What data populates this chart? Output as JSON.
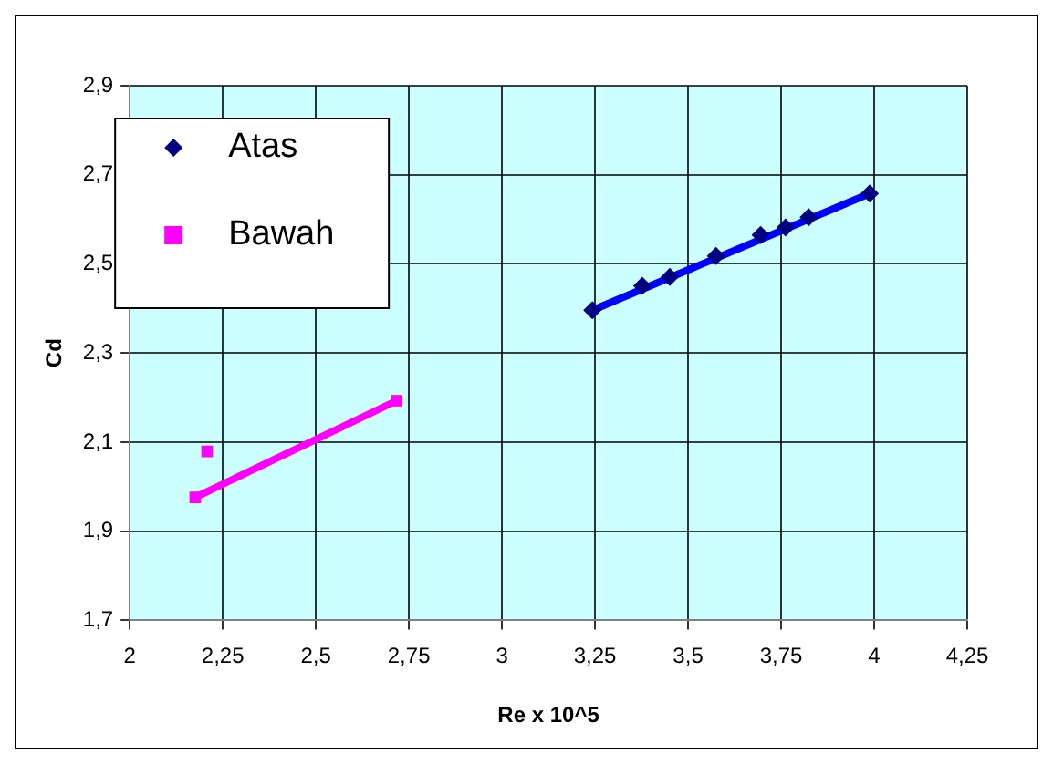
{
  "chart_data": {
    "type": "scatter",
    "xlabel": "Re x 10^5",
    "ylabel": "Cd",
    "xlim": [
      2,
      4.25
    ],
    "xticks": [
      {
        "value": 2,
        "label": "2"
      },
      {
        "value": 2.25,
        "label": "2,25"
      },
      {
        "value": 2.5,
        "label": "2,5"
      },
      {
        "value": 2.75,
        "label": "2,75"
      },
      {
        "value": 3,
        "label": "3"
      },
      {
        "value": 3.25,
        "label": "3,25"
      },
      {
        "value": 3.5,
        "label": "3,5"
      },
      {
        "value": 3.75,
        "label": "3,75"
      },
      {
        "value": 4,
        "label": "4"
      },
      {
        "value": 4.25,
        "label": "4,25"
      }
    ],
    "ylim": [
      1.7,
      2.9
    ],
    "yticks": [
      {
        "value": 1.7,
        "label": "1,7"
      },
      {
        "value": 1.9,
        "label": "1,9"
      },
      {
        "value": 2.1,
        "label": "2,1"
      },
      {
        "value": 2.3,
        "label": "2,3"
      },
      {
        "value": 2.5,
        "label": "2,5"
      },
      {
        "value": 2.7,
        "label": "2,7"
      },
      {
        "value": 2.9,
        "label": "2,9"
      }
    ],
    "grid": true,
    "legend": "top left",
    "series": [
      {
        "name": "Atas",
        "color": "#000080",
        "marker": "diamond",
        "x": [
          3.243,
          3.377,
          3.451,
          3.575,
          3.695,
          3.762,
          3.824,
          3.988
        ],
        "values": [
          2.396,
          2.451,
          2.471,
          2.518,
          2.565,
          2.582,
          2.605,
          2.658
        ]
      },
      {
        "name": "Bawah",
        "color": "#ff00ff",
        "marker": "square",
        "x": [
          2.176,
          2.208,
          2.717
        ],
        "values": [
          1.976,
          2.079,
          2.193
        ]
      },
      {
        "type": "line",
        "color": "#0000ff",
        "marker": "none",
        "x": [
          3.243,
          3.988
        ],
        "values": [
          2.396,
          2.658
        ]
      },
      {
        "type": "line",
        "color": "#ff00ff",
        "marker": "none",
        "x": [
          2.176,
          2.717
        ],
        "values": [
          1.976,
          2.193
        ]
      }
    ]
  }
}
